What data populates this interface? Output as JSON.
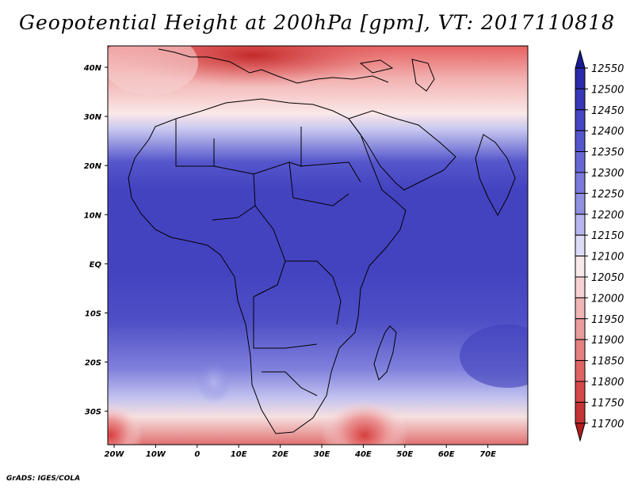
{
  "title": "Geopotential Height at 200hPa [gpm], VT: 2017110818",
  "credit": "GrADS: IGES/COLA",
  "lat_labels": [
    "40N",
    "30N",
    "20N",
    "10N",
    "EQ",
    "10S",
    "20S",
    "30S"
  ],
  "lon_labels": [
    "20W",
    "10W",
    "0",
    "10E",
    "20E",
    "30E",
    "40E",
    "50E",
    "60E",
    "70E"
  ],
  "colorbar": {
    "levels": [
      "12550",
      "12500",
      "12450",
      "12400",
      "12350",
      "12300",
      "12250",
      "12200",
      "12150",
      "12100",
      "12050",
      "12000",
      "11950",
      "11900",
      "11850",
      "11800",
      "11750",
      "11700"
    ],
    "colors": [
      "#1a1a96",
      "#2a2aaa",
      "#3737b8",
      "#4646c2",
      "#5656cc",
      "#6767d4",
      "#7a7adc",
      "#9090e2",
      "#b6b6ee",
      "#dcdcf6",
      "#f8eaea",
      "#f6d2d2",
      "#f0b6b6",
      "#ea9c9c",
      "#e48080",
      "#de6464",
      "#d54848",
      "#c53434",
      "#b01e1e"
    ]
  }
}
